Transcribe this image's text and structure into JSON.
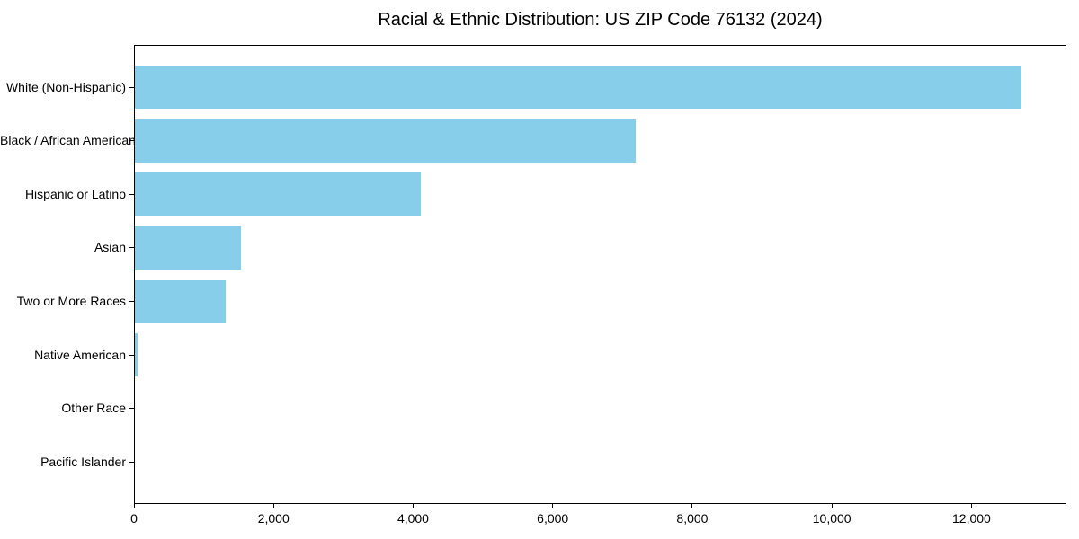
{
  "chart_data": {
    "type": "bar",
    "orientation": "horizontal",
    "title": "Racial & Ethnic Distribution: US ZIP Code 76132 (2024)",
    "categories": [
      "White (Non-Hispanic)",
      "Black / African American",
      "Hispanic or Latino",
      "Asian",
      "Two or More Races",
      "Native American",
      "Other Race",
      "Pacific Islander"
    ],
    "values": [
      12720,
      7190,
      4110,
      1530,
      1310,
      50,
      0,
      0
    ],
    "xlabel": "",
    "ylabel": "",
    "xlim": [
      0,
      13360
    ],
    "xticks": [
      0,
      2000,
      4000,
      6000,
      8000,
      10000,
      12000
    ],
    "xtick_labels": [
      "0",
      "2,000",
      "4,000",
      "6,000",
      "8,000",
      "10,000",
      "12,000"
    ],
    "bar_color": "#87CEEB",
    "spine_color": "#000000",
    "grid": false,
    "legend": null
  }
}
